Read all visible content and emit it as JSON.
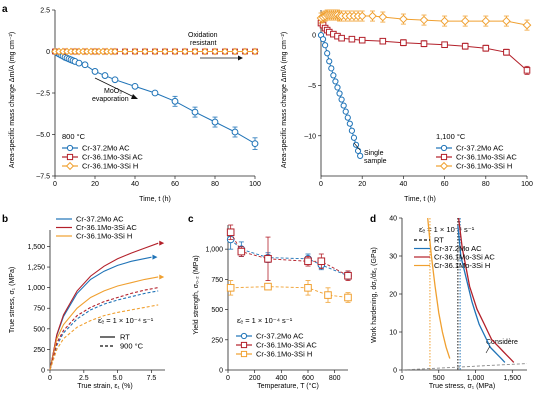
{
  "colors": {
    "blue": "#1f73b7",
    "red": "#b3202a",
    "orange": "#f0a030",
    "dark": "#111111",
    "grey": "#888888"
  },
  "chart_data": [
    {
      "panel": "a",
      "type": "line",
      "ylabel": "Area-specific mass change Δm/A (mg cm⁻²)",
      "xlabel": "Time, t (h)",
      "xlim": [
        0,
        100
      ],
      "ylim": [
        -7.5,
        2.5
      ],
      "xticks": [
        0,
        20,
        40,
        60,
        80,
        100
      ],
      "yticks": [
        2.5,
        0,
        -2.5,
        -5,
        -7.5
      ],
      "yticklabels": [
        "2.5",
        "0",
        "–2.5",
        "–5.0",
        "–7.5"
      ],
      "legend_title": "800 °C",
      "annotations": [
        "Oxidation resistant",
        "MoO₃ evaporation"
      ],
      "series": [
        {
          "name": "Cr-37.2Mo AC",
          "marker": "circle",
          "color": "blue",
          "x": [
            0,
            1,
            2,
            3,
            4,
            5,
            6,
            7,
            8,
            9,
            10,
            12,
            15,
            20,
            25,
            30,
            40,
            50,
            60,
            70,
            80,
            90,
            100
          ],
          "y": [
            0,
            -0.08,
            -0.15,
            -0.22,
            -0.28,
            -0.35,
            -0.4,
            -0.45,
            -0.5,
            -0.55,
            -0.6,
            -0.7,
            -0.8,
            -1.2,
            -1.45,
            -1.7,
            -2.1,
            -2.5,
            -3.0,
            -3.65,
            -4.25,
            -4.85,
            -5.55
          ],
          "err": [
            0,
            0,
            0,
            0,
            0,
            0,
            0,
            0,
            0,
            0,
            0,
            0,
            0,
            0,
            0,
            0,
            0,
            0,
            0.3,
            0.3,
            0.3,
            0.3,
            0.35
          ]
        },
        {
          "name": "Cr-36.1Mo-3Si AC",
          "marker": "square",
          "color": "red",
          "x": [
            0,
            5,
            10,
            15,
            20,
            25,
            30,
            35,
            40,
            45,
            50,
            55,
            60,
            65,
            70,
            75,
            80,
            85,
            90,
            95,
            100
          ],
          "y": [
            0,
            0,
            0,
            0,
            0,
            0,
            0,
            0,
            0,
            0,
            0,
            0,
            0,
            0,
            0,
            0,
            0,
            0,
            0,
            0,
            0
          ]
        },
        {
          "name": "Cr-36.1Mo-3Si H",
          "marker": "diamond",
          "color": "orange",
          "x": [
            0,
            2,
            4,
            6,
            8,
            10,
            12,
            14,
            16,
            18,
            20,
            22,
            24,
            26,
            28,
            30,
            35,
            40,
            45,
            50,
            55,
            60,
            65,
            70,
            75,
            80,
            85,
            90,
            95,
            100
          ],
          "y": [
            0,
            0,
            0,
            0,
            0,
            0,
            0,
            0,
            0,
            0,
            0,
            0,
            0,
            0,
            0,
            0,
            0,
            0,
            0,
            0,
            0,
            0,
            0,
            0,
            0,
            0,
            0,
            0,
            0,
            0
          ]
        }
      ]
    },
    {
      "panel": "a2",
      "type": "line",
      "ylabel": "Area-specific mass change Δm/A (mg cm⁻²)",
      "xlabel": "Time, t (h)",
      "xlim": [
        0,
        100
      ],
      "ylim": [
        -14,
        2.5
      ],
      "xticks": [
        0,
        20,
        40,
        60,
        80,
        100
      ],
      "yticks": [
        0,
        -5,
        -10
      ],
      "yticklabels": [
        "0",
        "–5",
        "–10"
      ],
      "legend_title": "1,100 °C",
      "annotations": [
        "Single sample"
      ],
      "series": [
        {
          "name": "Cr-37.2Mo AC",
          "marker": "circle",
          "color": "blue",
          "x": [
            0,
            1,
            2,
            3,
            4,
            5,
            6,
            7,
            8,
            9,
            10,
            11,
            12,
            13,
            14,
            15,
            16,
            17,
            18,
            19
          ],
          "y": [
            0,
            -0.4,
            -1.0,
            -1.8,
            -2.6,
            -3.3,
            -4.0,
            -4.6,
            -5.2,
            -5.8,
            -6.4,
            -7.0,
            -7.6,
            -8.2,
            -8.8,
            -9.5,
            -10.2,
            -10.9,
            -11.5,
            -12.0
          ]
        },
        {
          "name": "Cr-36.1Mo-3Si AC",
          "marker": "square",
          "color": "red",
          "x": [
            0,
            1,
            2,
            3,
            4,
            6,
            8,
            10,
            15,
            20,
            30,
            40,
            50,
            60,
            70,
            80,
            90,
            100
          ],
          "y": [
            1.2,
            1.0,
            0.7,
            0.5,
            0.3,
            0.1,
            -0.1,
            -0.3,
            -0.4,
            -0.5,
            -0.6,
            -0.75,
            -0.85,
            -0.95,
            -1.1,
            -1.3,
            -1.7,
            -3.5
          ],
          "err": [
            0,
            0,
            0,
            0,
            0,
            0,
            0,
            0,
            0,
            0,
            0.2,
            0.3,
            0.3,
            0.2,
            0.3,
            0.3,
            0.3,
            0.4
          ]
        },
        {
          "name": "Cr-36.1Mo-3Si H",
          "marker": "diamond",
          "color": "orange",
          "x": [
            0,
            1,
            2,
            3,
            4,
            5,
            6,
            7,
            8,
            9,
            10,
            12,
            14,
            16,
            18,
            20,
            25,
            30,
            40,
            50,
            60,
            70,
            80,
            90,
            100
          ],
          "y": [
            1.7,
            1.8,
            1.9,
            2.0,
            2.0,
            2.0,
            2.0,
            2.0,
            2.0,
            1.9,
            1.9,
            1.9,
            1.9,
            1.9,
            1.9,
            1.9,
            1.9,
            1.8,
            1.6,
            1.5,
            1.4,
            1.4,
            1.4,
            1.4,
            1.0
          ],
          "err": [
            0.5,
            0.5,
            0.5,
            0.5,
            0.5,
            0.5,
            0.5,
            0.5,
            0.5,
            0.5,
            0.5,
            0.5,
            0.5,
            0.5,
            0.5,
            0.5,
            0.5,
            0.5,
            0.5,
            0.5,
            0.5,
            0.5,
            0.5,
            0.5,
            0.5
          ]
        }
      ]
    },
    {
      "panel": "b",
      "type": "line",
      "xlabel": "True strain, ε₁ (%)",
      "ylabel": "True stress, σ₁ (MPa)",
      "xlim": [
        0,
        8.5
      ],
      "ylim": [
        0,
        1700
      ],
      "xticks": [
        0,
        2.5,
        5.0,
        7.5
      ],
      "xticklabels": [
        "0",
        "2.5",
        "5.0",
        "7.5"
      ],
      "yticks": [
        0,
        250,
        500,
        750,
        1000,
        1250,
        1500
      ],
      "yticklabels": [
        "0",
        "250",
        "500",
        "750",
        "1,000",
        "1,250",
        "1,500"
      ],
      "strain_rate": "ε̇ₑ = 1 × 10⁻⁴ s⁻¹",
      "line_styles": [
        {
          "label": "RT",
          "style": "solid"
        },
        {
          "label": "900 °C",
          "style": "dashed"
        }
      ],
      "series": [
        {
          "name": "Cr-37.2Mo AC",
          "color": "blue",
          "style": "solid",
          "x": [
            0,
            0.5,
            1,
            2,
            3,
            4,
            5,
            6,
            7.5
          ],
          "y": [
            0,
            420,
            650,
            930,
            1100,
            1200,
            1270,
            1320,
            1370
          ]
        },
        {
          "name": "Cr-36.1Mo-3Si AC",
          "color": "red",
          "style": "solid",
          "x": [
            0,
            0.5,
            1,
            2,
            3,
            4,
            5,
            6,
            7,
            8
          ],
          "y": [
            0,
            430,
            670,
            960,
            1140,
            1260,
            1350,
            1420,
            1480,
            1540
          ]
        },
        {
          "name": "Cr-36.1Mo-3Si H",
          "color": "orange",
          "style": "solid",
          "x": [
            0,
            0.5,
            1,
            2,
            3,
            4,
            5,
            6,
            7,
            8
          ],
          "y": [
            0,
            380,
            550,
            750,
            880,
            960,
            1020,
            1060,
            1100,
            1130
          ]
        },
        {
          "name": "Cr-37.2Mo AC 900 °C",
          "color": "blue",
          "style": "dashed",
          "x": [
            0,
            0.5,
            1,
            2,
            3,
            4,
            5,
            6,
            7,
            8
          ],
          "y": [
            0,
            300,
            450,
            620,
            730,
            800,
            850,
            890,
            930,
            960
          ]
        },
        {
          "name": "Cr-36.1Mo-3Si AC 900 °C",
          "color": "red",
          "style": "dashed",
          "x": [
            0,
            0.5,
            1,
            2,
            3,
            4,
            5,
            6,
            7,
            8
          ],
          "y": [
            0,
            330,
            480,
            660,
            760,
            830,
            880,
            930,
            970,
            1000
          ]
        },
        {
          "name": "Cr-36.1Mo-3Si H 900 °C",
          "color": "orange",
          "style": "dashed",
          "x": [
            0,
            0.5,
            1,
            2,
            3,
            4,
            5,
            6,
            7,
            8
          ],
          "y": [
            0,
            250,
            380,
            520,
            600,
            660,
            700,
            730,
            760,
            790
          ]
        }
      ]
    },
    {
      "panel": "c",
      "type": "scatter",
      "xlabel": "Temperature, T (°C)",
      "ylabel": "Yield strength, σ₀.₂ (MPa)",
      "xlim": [
        0,
        900
      ],
      "ylim": [
        0,
        1200
      ],
      "xticks": [
        0,
        200,
        400,
        600,
        800
      ],
      "yticks": [
        0,
        250,
        500,
        750,
        1000
      ],
      "yticklabels": [
        "0",
        "250",
        "500",
        "750",
        "1,000"
      ],
      "strain_rate": "ε̇ₑ = 1 × 10⁻⁴ s⁻¹",
      "series": [
        {
          "name": "Cr-37.2Mo AC",
          "marker": "circle",
          "color": "blue",
          "x": [
            20,
            100,
            300,
            600,
            700,
            900
          ],
          "y": [
            1080,
            1000,
            930,
            920,
            870,
            780
          ],
          "err": [
            80,
            60,
            40,
            40,
            40,
            30
          ]
        },
        {
          "name": "Cr-36.1Mo-3Si AC",
          "marker": "square",
          "color": "red",
          "x": [
            20,
            100,
            300,
            600,
            700,
            900
          ],
          "y": [
            1140,
            980,
            920,
            900,
            900,
            780
          ],
          "err": [
            60,
            40,
            180,
            40,
            60,
            40
          ]
        },
        {
          "name": "Cr-36.1Mo-3Si H",
          "marker": "square",
          "color": "orange",
          "x": [
            20,
            300,
            600,
            750,
            900
          ],
          "y": [
            680,
            690,
            680,
            620,
            600
          ],
          "err": [
            60,
            20,
            60,
            60,
            40
          ]
        }
      ]
    },
    {
      "panel": "d",
      "type": "line",
      "xlabel": "True stress, σ₁ (MPa)",
      "ylabel": "Work hardening, dσ₁/dε₁ (GPa)",
      "xlim": [
        0,
        1700
      ],
      "ylim": [
        0,
        40
      ],
      "xticks": [
        0,
        500,
        1000,
        1500
      ],
      "xticklabels": [
        "0",
        "500",
        "1,000",
        "1,500"
      ],
      "yticks": [
        0,
        10,
        20,
        30,
        40
      ],
      "strain_rate": "ε̇ₑ = 1 × 10⁻⁴ s⁻¹",
      "annotations": [
        "Considère"
      ],
      "series": [
        {
          "name": "RT",
          "color": "dark",
          "style": "dashed"
        },
        {
          "name": "Cr-37.2Mo AC",
          "color": "blue",
          "x": [
            760,
            800,
            850,
            900,
            950,
            1000,
            1050,
            1100,
            1150,
            1200,
            1250,
            1300,
            1350,
            1400
          ],
          "y": [
            38,
            30,
            26,
            22,
            18,
            15,
            12,
            10,
            8,
            6,
            5,
            4,
            3,
            2
          ]
        },
        {
          "name": "Cr-36.1Mo-3Si AC",
          "color": "red",
          "x": [
            770,
            820,
            870,
            920,
            970,
            1020,
            1070,
            1120,
            1170,
            1220,
            1270,
            1320,
            1370,
            1420,
            1470,
            1520
          ],
          "y": [
            40,
            32,
            27,
            22,
            19,
            16,
            14,
            12,
            10,
            8,
            7,
            6,
            5,
            4,
            3,
            2
          ]
        },
        {
          "name": "Cr-36.1Mo-3Si H",
          "color": "orange",
          "x": [
            350,
            400,
            450,
            500,
            550,
            600,
            650
          ],
          "y": [
            40,
            30,
            22,
            15,
            10,
            6,
            3
          ]
        }
      ]
    }
  ],
  "panels": {
    "a": {
      "label": "a"
    },
    "b": {
      "label": "b"
    },
    "c": {
      "label": "c"
    },
    "d": {
      "label": "d"
    }
  }
}
